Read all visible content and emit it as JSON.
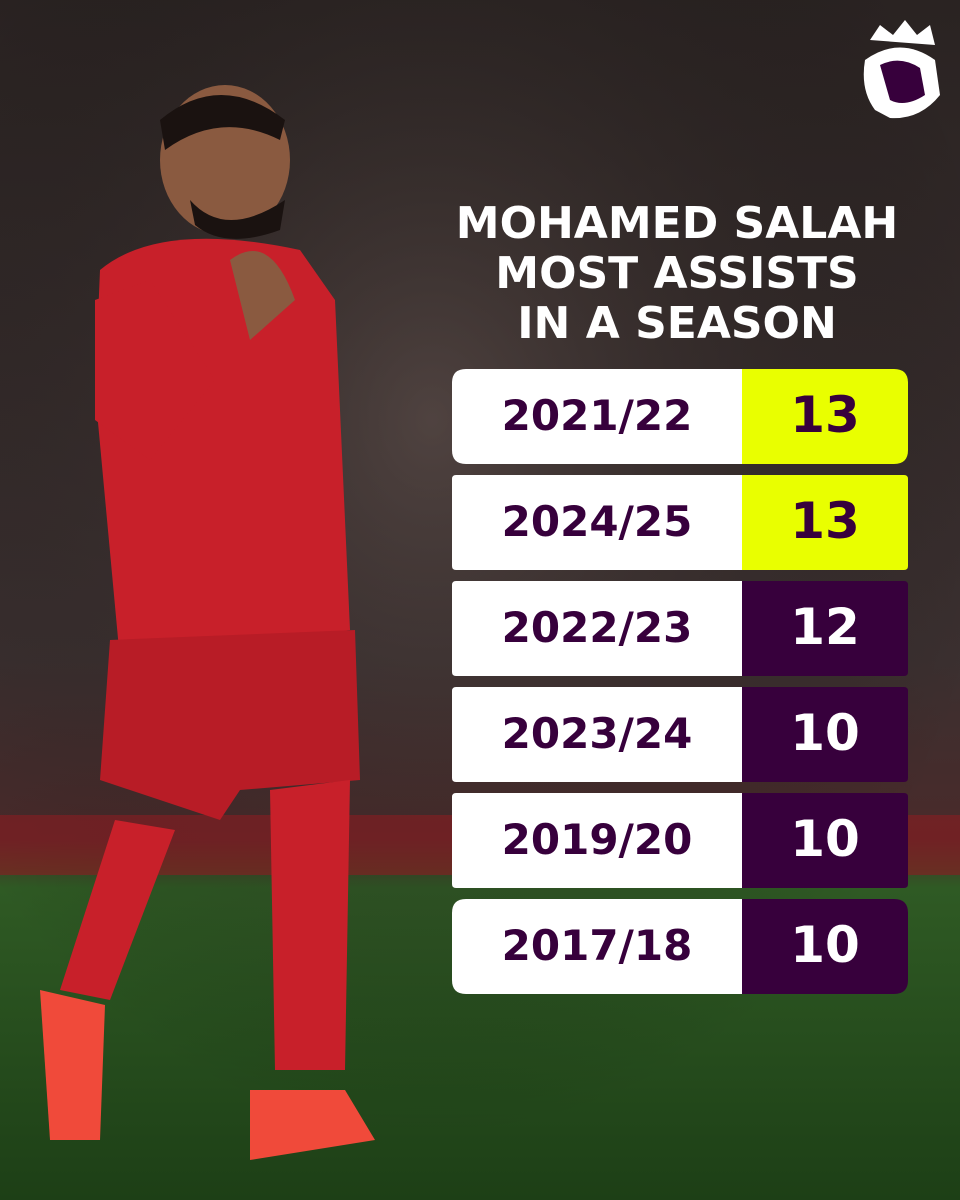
{
  "header": {
    "title_lines": [
      "MOHAMED SALAH",
      "MOST ASSISTS",
      "IN A SEASON"
    ]
  },
  "table": {
    "rows": [
      {
        "season": "2021/22",
        "assists": 13,
        "color": "#e9ff00",
        "text_color": "#37003c"
      },
      {
        "season": "2024/25",
        "assists": 13,
        "color": "#e9ff00",
        "text_color": "#37003c"
      },
      {
        "season": "2022/23",
        "assists": 12,
        "color": "#37003c",
        "text_color": "#ffffff"
      },
      {
        "season": "2023/24",
        "assists": 10,
        "color": "#37003c",
        "text_color": "#ffffff"
      },
      {
        "season": "2019/20",
        "assists": 10,
        "color": "#37003c",
        "text_color": "#ffffff"
      },
      {
        "season": "2017/18",
        "assists": 10,
        "color": "#37003c",
        "text_color": "#ffffff"
      }
    ]
  }
}
